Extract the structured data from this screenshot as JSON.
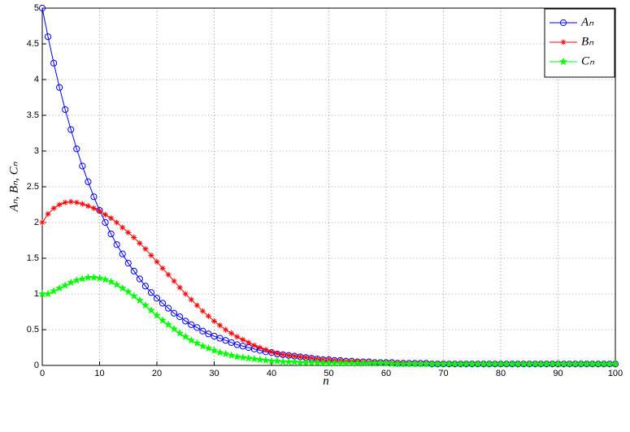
{
  "chart_data": {
    "type": "line",
    "xlabel": "n",
    "ylabel": "Aₙ, Bₙ, Cₙ",
    "x": [
      0,
      1,
      2,
      3,
      4,
      5,
      6,
      7,
      8,
      9,
      10,
      11,
      12,
      13,
      14,
      15,
      16,
      17,
      18,
      19,
      20,
      21,
      22,
      23,
      24,
      25,
      26,
      27,
      28,
      29,
      30,
      31,
      32,
      33,
      34,
      35,
      36,
      37,
      38,
      39,
      40,
      41,
      42,
      43,
      44,
      45,
      46,
      47,
      48,
      49,
      50,
      51,
      52,
      53,
      54,
      55,
      56,
      57,
      58,
      59,
      60,
      61,
      62,
      63,
      64,
      65,
      66,
      67,
      68,
      69,
      70,
      71,
      72,
      73,
      74,
      75,
      76,
      77,
      78,
      79,
      80,
      81,
      82,
      83,
      84,
      85,
      86,
      87,
      88,
      89,
      90,
      91,
      92,
      93,
      94,
      95,
      96,
      97,
      98,
      99,
      100
    ],
    "series": [
      {
        "name": "Aₙ",
        "color": "#0000ff",
        "marker": "circle",
        "values": [
          5.0,
          4.6,
          4.23,
          3.89,
          3.58,
          3.3,
          3.03,
          2.79,
          2.57,
          2.36,
          2.17,
          2.0,
          1.84,
          1.69,
          1.56,
          1.43,
          1.32,
          1.21,
          1.11,
          1.02,
          0.94,
          0.87,
          0.8,
          0.73,
          0.68,
          0.62,
          0.57,
          0.53,
          0.48,
          0.44,
          0.41,
          0.38,
          0.35,
          0.32,
          0.29,
          0.27,
          0.25,
          0.23,
          0.21,
          0.19,
          0.18,
          0.16,
          0.15,
          0.14,
          0.13,
          0.12,
          0.11,
          0.1,
          0.09,
          0.08,
          0.08,
          0.07,
          0.07,
          0.06,
          0.06,
          0.05,
          0.05,
          0.05,
          0.04,
          0.04,
          0.04,
          0.04,
          0.03,
          0.03,
          0.03,
          0.03,
          0.03,
          0.03,
          0.02,
          0.02,
          0.02,
          0.02,
          0.02,
          0.02,
          0.02,
          0.02,
          0.02,
          0.02,
          0.02,
          0.02,
          0.02,
          0.02,
          0.02,
          0.02,
          0.02,
          0.02,
          0.02,
          0.02,
          0.02,
          0.02,
          0.02,
          0.02,
          0.02,
          0.02,
          0.02,
          0.02,
          0.02,
          0.02,
          0.02,
          0.02,
          0.02
        ]
      },
      {
        "name": "Bₙ",
        "color": "#ff0000",
        "marker": "asterisk",
        "values": [
          2.0,
          2.12,
          2.2,
          2.25,
          2.28,
          2.29,
          2.28,
          2.26,
          2.23,
          2.2,
          2.16,
          2.11,
          2.06,
          2.0,
          1.93,
          1.86,
          1.79,
          1.71,
          1.63,
          1.54,
          1.45,
          1.36,
          1.27,
          1.18,
          1.09,
          1.0,
          0.92,
          0.84,
          0.76,
          0.69,
          0.62,
          0.56,
          0.5,
          0.45,
          0.4,
          0.36,
          0.32,
          0.28,
          0.25,
          0.22,
          0.19,
          0.17,
          0.15,
          0.14,
          0.13,
          0.12,
          0.11,
          0.1,
          0.09,
          0.08,
          0.08,
          0.07,
          0.07,
          0.06,
          0.06,
          0.06,
          0.05,
          0.05,
          0.05,
          0.04,
          0.04,
          0.04,
          0.04,
          0.04,
          0.03,
          0.03,
          0.03,
          0.03,
          0.03,
          0.03,
          0.03,
          0.02,
          0.02,
          0.02,
          0.02,
          0.02,
          0.02,
          0.02,
          0.02,
          0.02,
          0.02,
          0.02,
          0.02,
          0.02,
          0.02,
          0.02,
          0.02,
          0.02,
          0.02,
          0.02,
          0.02,
          0.02,
          0.02,
          0.02,
          0.02,
          0.02,
          0.02,
          0.02,
          0.02,
          0.02,
          0.02
        ]
      },
      {
        "name": "Cₙ",
        "color": "#00ff00",
        "marker": "star",
        "values": [
          1.0,
          1.0,
          1.04,
          1.08,
          1.12,
          1.16,
          1.19,
          1.21,
          1.23,
          1.23,
          1.22,
          1.2,
          1.17,
          1.13,
          1.08,
          1.03,
          0.97,
          0.91,
          0.84,
          0.77,
          0.7,
          0.63,
          0.57,
          0.51,
          0.45,
          0.4,
          0.35,
          0.31,
          0.27,
          0.24,
          0.21,
          0.18,
          0.16,
          0.14,
          0.12,
          0.11,
          0.1,
          0.09,
          0.08,
          0.07,
          0.06,
          0.06,
          0.05,
          0.05,
          0.05,
          0.04,
          0.04,
          0.04,
          0.04,
          0.03,
          0.03,
          0.03,
          0.03,
          0.03,
          0.03,
          0.03,
          0.03,
          0.03,
          0.03,
          0.03,
          0.03,
          0.02,
          0.02,
          0.02,
          0.02,
          0.02,
          0.02,
          0.02,
          0.02,
          0.02,
          0.02,
          0.02,
          0.02,
          0.02,
          0.02,
          0.02,
          0.02,
          0.02,
          0.02,
          0.02,
          0.02,
          0.02,
          0.02,
          0.02,
          0.02,
          0.02,
          0.02,
          0.02,
          0.02,
          0.02,
          0.02,
          0.02,
          0.02,
          0.02,
          0.02,
          0.02,
          0.02,
          0.02,
          0.02,
          0.02,
          0.02
        ]
      }
    ],
    "xlim": [
      0,
      100
    ],
    "xticks": [
      0,
      10,
      20,
      30,
      40,
      50,
      60,
      70,
      80,
      90,
      100
    ],
    "ylim": [
      0,
      5
    ],
    "yticks": [
      0,
      0.5,
      1,
      1.5,
      2,
      2.5,
      3,
      3.5,
      4,
      4.5,
      5
    ],
    "grid": true,
    "legend": "top-right"
  }
}
